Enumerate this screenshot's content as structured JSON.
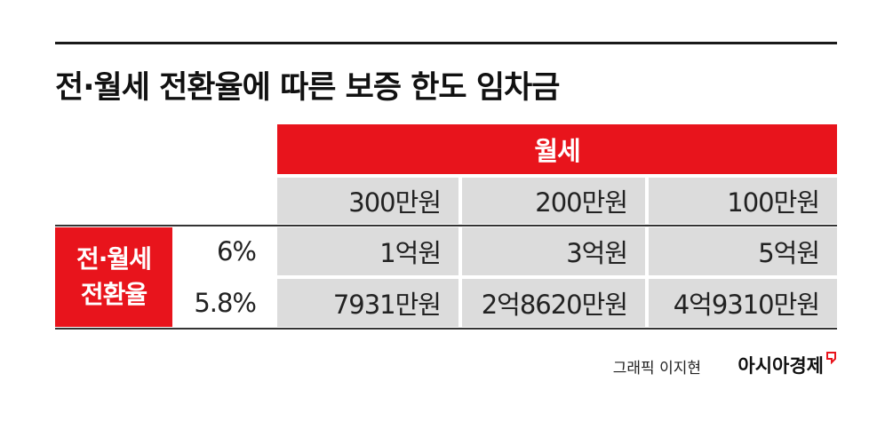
{
  "header": {
    "title": "전·월세 전환율에 따른 보증 한도 임차금"
  },
  "table": {
    "group_header": "월세",
    "columns": [
      "300만원",
      "200만원",
      "100만원"
    ],
    "row_header": [
      "전·월세",
      "전환율"
    ],
    "rows": [
      [
        "6%",
        "1억원",
        "3억원",
        "5억원"
      ],
      [
        "5.8%",
        "7931만원",
        "2억8620만원",
        "4억9310만원"
      ]
    ]
  },
  "footer": {
    "credit": "그래픽 이지현",
    "brand": "아시아경제"
  }
}
